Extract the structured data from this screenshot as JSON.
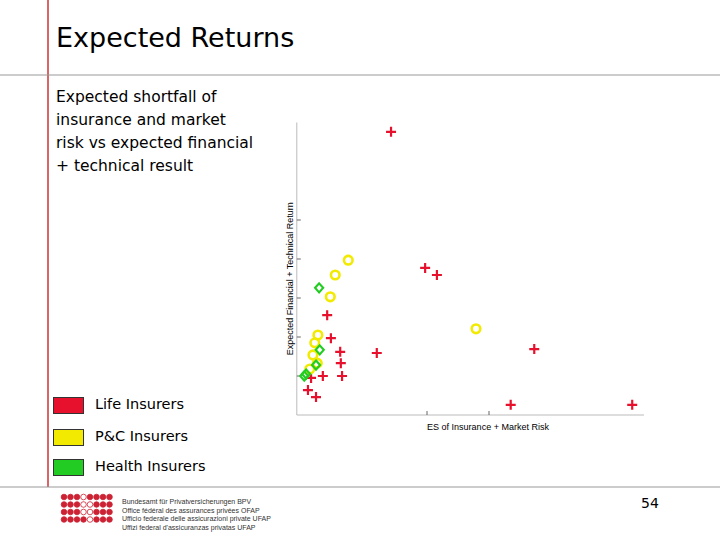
{
  "chart_data": {
    "type": "scatter",
    "title": "Expected Returns",
    "subtitle": "Expected shortfall of insurance and market risk vs expected financial + technical result",
    "x_label": "ES of Insurance + Market Risk",
    "y_label": "Expected Financial + Technical Return",
    "xlim": [
      -0.1,
      5.5
    ],
    "xticks": [
      2,
      3
    ],
    "ylim": [
      0,
      7.5
    ],
    "yticks": [
      1,
      2,
      3,
      4,
      5
    ],
    "tick_labels": false,
    "grid": false,
    "legend": "bottom-left",
    "series": [
      {
        "name": "Life Insurers",
        "color": "#e8112d",
        "marker": "plus",
        "x": [
          1.42,
          1.97,
          2.16,
          0.39,
          0.45,
          0.6,
          1.19,
          3.73,
          0.61,
          0.32,
          0.63,
          0.13,
          0.08,
          0.21,
          3.35,
          5.31
        ],
        "values": [
          7.26,
          3.77,
          3.59,
          2.56,
          1.97,
          1.62,
          1.59,
          1.69,
          1.33,
          1.0,
          1.0,
          0.95,
          0.64,
          0.46,
          0.26,
          0.26
        ]
      },
      {
        "name": "P&C Insurers",
        "color": "#f2ea00",
        "marker": "circle",
        "x": [
          0.73,
          0.52,
          0.44,
          2.79,
          0.24,
          0.19,
          0.16,
          0.23,
          0.11
        ],
        "values": [
          3.97,
          3.59,
          3.03,
          2.21,
          2.05,
          1.85,
          1.54,
          1.33,
          1.18
        ]
      },
      {
        "name": "Health Insurers",
        "color": "#22cc22",
        "marker": "diamond",
        "x": [
          0.26,
          0.27,
          0.21,
          0.05,
          0.02
        ],
        "values": [
          3.26,
          1.67,
          1.28,
          1.05,
          1.0
        ]
      }
    ]
  },
  "footer": {
    "lines": [
      "Bundesamt für Privatversicherungen BPV",
      "Office fédéral des assurances privées OFAP",
      "Ufficio federale delle assicurazioni private UFAP",
      "Uffizi federal d'assicuranzas privatas UFAP"
    ],
    "page": "54"
  }
}
